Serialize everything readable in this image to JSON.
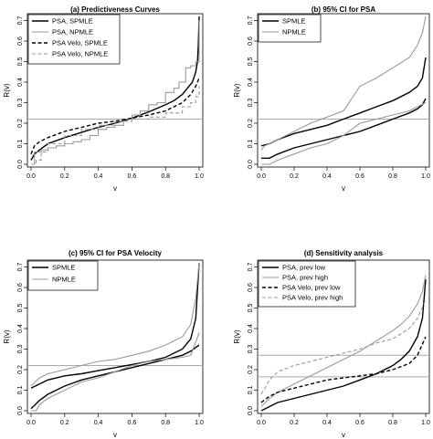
{
  "chart_data": [
    {
      "type": "line",
      "title": "(a) Predictiveness Curves",
      "xlabel": "v",
      "ylabel": "R(v)",
      "xlim": [
        0,
        1
      ],
      "ylim": [
        0,
        0.72
      ],
      "xticks": [
        "0.0",
        "0.2",
        "0.4",
        "0.6",
        "0.8",
        "1.0"
      ],
      "yticks": [
        "0.0",
        "0.1",
        "0.2",
        "0.3",
        "0.4",
        "0.5",
        "0.6",
        "0.7"
      ],
      "legend_position": "top-left",
      "legend": [
        "PSA, SPMLE",
        "PSA, NPMLE",
        "PSA Velo, SPMLE",
        "PSA Velo, NPMLE"
      ],
      "hlines": [
        0.22
      ],
      "series": [
        {
          "name": "PSA, SPMLE",
          "color": "#000000",
          "dash": "solid",
          "step": false,
          "x": [
            0,
            0.02,
            0.05,
            0.1,
            0.2,
            0.3,
            0.4,
            0.5,
            0.6,
            0.7,
            0.8,
            0.85,
            0.9,
            0.93,
            0.96,
            0.98,
            0.99,
            0.995,
            1.0
          ],
          "y": [
            0.02,
            0.05,
            0.07,
            0.1,
            0.13,
            0.155,
            0.18,
            0.2,
            0.225,
            0.255,
            0.29,
            0.31,
            0.34,
            0.37,
            0.4,
            0.45,
            0.5,
            0.58,
            0.72
          ]
        },
        {
          "name": "PSA, NPMLE",
          "color": "#999999",
          "dash": "solid",
          "step": true,
          "x": [
            0,
            0.02,
            0.06,
            0.1,
            0.15,
            0.2,
            0.25,
            0.3,
            0.35,
            0.4,
            0.45,
            0.5,
            0.55,
            0.6,
            0.65,
            0.7,
            0.75,
            0.8,
            0.85,
            0.88,
            0.92,
            0.95,
            0.98,
            1.0
          ],
          "y": [
            0.0,
            0.06,
            0.07,
            0.08,
            0.09,
            0.1,
            0.11,
            0.12,
            0.14,
            0.17,
            0.18,
            0.19,
            0.22,
            0.24,
            0.26,
            0.29,
            0.3,
            0.35,
            0.37,
            0.4,
            0.47,
            0.48,
            0.5,
            0.7
          ]
        },
        {
          "name": "PSA Velo, SPMLE",
          "color": "#000000",
          "dash": "dashed",
          "step": false,
          "x": [
            0,
            0.02,
            0.05,
            0.1,
            0.2,
            0.3,
            0.4,
            0.5,
            0.6,
            0.7,
            0.8,
            0.85,
            0.9,
            0.95,
            0.98,
            1.0
          ],
          "y": [
            0.05,
            0.09,
            0.11,
            0.13,
            0.16,
            0.18,
            0.2,
            0.21,
            0.225,
            0.24,
            0.26,
            0.28,
            0.3,
            0.34,
            0.38,
            0.42
          ]
        },
        {
          "name": "PSA Velo, NPMLE",
          "color": "#999999",
          "dash": "dashed",
          "step": true,
          "x": [
            0,
            0.03,
            0.06,
            0.1,
            0.2,
            0.3,
            0.4,
            0.5,
            0.6,
            0.7,
            0.8,
            0.9,
            0.95,
            0.98,
            1.0
          ],
          "y": [
            0.0,
            0.02,
            0.06,
            0.1,
            0.14,
            0.17,
            0.19,
            0.21,
            0.22,
            0.23,
            0.25,
            0.28,
            0.3,
            0.33,
            0.38
          ]
        }
      ]
    },
    {
      "type": "line",
      "title": "(b) 95% CI for PSA",
      "xlabel": "v",
      "ylabel": "R(v)",
      "xlim": [
        0,
        1
      ],
      "ylim": [
        0,
        0.72
      ],
      "xticks": [
        "0.0",
        "0.2",
        "0.4",
        "0.6",
        "0.8",
        "1.0"
      ],
      "yticks": [
        "0.0",
        "0.1",
        "0.2",
        "0.3",
        "0.4",
        "0.5",
        "0.6",
        "0.7"
      ],
      "legend_position": "top-left",
      "legend": [
        "SPMLE",
        "NPMLE"
      ],
      "hlines": [
        0.22
      ],
      "series": [
        {
          "name": "SPMLE",
          "color": "#000000",
          "dash": "solid",
          "step": false,
          "x": [
            0,
            0.05,
            0.1,
            0.2,
            0.3,
            0.4,
            0.5,
            0.6,
            0.7,
            0.8,
            0.9,
            0.95,
            0.98,
            1.0
          ],
          "y": [
            0.09,
            0.1,
            0.12,
            0.15,
            0.17,
            0.19,
            0.22,
            0.25,
            0.28,
            0.31,
            0.35,
            0.38,
            0.42,
            0.52
          ]
        },
        {
          "series_of": "SPMLE",
          "color": "#000000",
          "dash": "solid",
          "step": false,
          "x": [
            0,
            0.05,
            0.1,
            0.2,
            0.3,
            0.4,
            0.5,
            0.6,
            0.7,
            0.8,
            0.9,
            0.95,
            0.98,
            1.0
          ],
          "y": [
            0.03,
            0.03,
            0.05,
            0.08,
            0.1,
            0.12,
            0.14,
            0.16,
            0.19,
            0.22,
            0.25,
            0.27,
            0.29,
            0.32
          ]
        },
        {
          "name": "NPMLE",
          "color": "#999999",
          "dash": "solid",
          "step": false,
          "x": [
            0,
            0.02,
            0.05,
            0.1,
            0.2,
            0.3,
            0.4,
            0.5,
            0.55,
            0.6,
            0.7,
            0.8,
            0.9,
            0.95,
            0.98,
            1.0
          ],
          "y": [
            0.07,
            0.09,
            0.1,
            0.12,
            0.16,
            0.2,
            0.23,
            0.26,
            0.32,
            0.38,
            0.42,
            0.47,
            0.52,
            0.58,
            0.64,
            0.72
          ]
        },
        {
          "series_of": "NPMLE",
          "color": "#999999",
          "dash": "solid",
          "step": false,
          "x": [
            0,
            0.05,
            0.1,
            0.2,
            0.3,
            0.4,
            0.5,
            0.55,
            0.6,
            0.65,
            0.7,
            0.8,
            0.9,
            0.95,
            1.0
          ],
          "y": [
            0.0,
            0.0,
            0.02,
            0.05,
            0.08,
            0.1,
            0.14,
            0.17,
            0.2,
            0.21,
            0.22,
            0.24,
            0.26,
            0.28,
            0.3
          ]
        }
      ]
    },
    {
      "type": "line",
      "title": "(c) 95% CI for PSA Velocity",
      "xlabel": "v",
      "ylabel": "R(v)",
      "xlim": [
        0,
        1
      ],
      "ylim": [
        0,
        0.72
      ],
      "xticks": [
        "0.0",
        "0.2",
        "0.4",
        "0.6",
        "0.8",
        "1.0"
      ],
      "yticks": [
        "0.0",
        "0.1",
        "0.2",
        "0.3",
        "0.4",
        "0.5",
        "0.6",
        "0.7"
      ],
      "legend_position": "top-left",
      "legend": [
        "SPMLE",
        "NPMLE"
      ],
      "hlines": [
        0.22
      ],
      "series": [
        {
          "name": "SPMLE",
          "color": "#000000",
          "dash": "solid",
          "step": false,
          "x": [
            0,
            0.05,
            0.1,
            0.2,
            0.3,
            0.4,
            0.5,
            0.6,
            0.7,
            0.8,
            0.9,
            0.95,
            0.98,
            1.0
          ],
          "y": [
            0.11,
            0.13,
            0.15,
            0.17,
            0.18,
            0.195,
            0.21,
            0.225,
            0.24,
            0.26,
            0.3,
            0.35,
            0.45,
            0.72
          ]
        },
        {
          "series_of": "SPMLE",
          "color": "#000000",
          "dash": "solid",
          "step": false,
          "x": [
            0,
            0.05,
            0.1,
            0.2,
            0.3,
            0.4,
            0.5,
            0.6,
            0.7,
            0.8,
            0.9,
            0.95,
            1.0
          ],
          "y": [
            0.01,
            0.05,
            0.08,
            0.12,
            0.15,
            0.17,
            0.19,
            0.21,
            0.23,
            0.25,
            0.27,
            0.29,
            0.32
          ]
        },
        {
          "name": "NPMLE",
          "color": "#999999",
          "dash": "solid",
          "step": false,
          "x": [
            0,
            0.05,
            0.1,
            0.2,
            0.3,
            0.4,
            0.5,
            0.6,
            0.7,
            0.8,
            0.9,
            0.95,
            0.98,
            1.0
          ],
          "y": [
            0.12,
            0.16,
            0.18,
            0.2,
            0.22,
            0.24,
            0.25,
            0.27,
            0.29,
            0.32,
            0.36,
            0.42,
            0.55,
            0.72
          ]
        },
        {
          "series_of": "NPMLE",
          "color": "#999999",
          "dash": "solid",
          "step": false,
          "x": [
            0,
            0.03,
            0.05,
            0.1,
            0.2,
            0.3,
            0.4,
            0.5,
            0.6,
            0.7,
            0.8,
            0.9,
            0.95,
            1.0
          ],
          "y": [
            0.0,
            0.0,
            0.03,
            0.06,
            0.1,
            0.14,
            0.16,
            0.19,
            0.22,
            0.24,
            0.25,
            0.26,
            0.27,
            0.38
          ]
        }
      ]
    },
    {
      "type": "line",
      "title": "(d) Sensitivity analysis",
      "xlabel": "v",
      "ylabel": "R(v)",
      "xlim": [
        0,
        1
      ],
      "ylim": [
        0,
        0.72
      ],
      "xticks": [
        "0.0",
        "0.2",
        "0.4",
        "0.6",
        "0.8",
        "1.0"
      ],
      "yticks": [
        "0.0",
        "0.1",
        "0.2",
        "0.3",
        "0.4",
        "0.5",
        "0.6",
        "0.7"
      ],
      "legend_position": "top-left",
      "legend": [
        "PSA, prev low",
        "PSA, prev high",
        "PSA Velo, prev low",
        "PSA Velo, prev high"
      ],
      "hlines": [
        0.165,
        0.27
      ],
      "series": [
        {
          "name": "PSA, prev low",
          "color": "#000000",
          "dash": "solid",
          "step": false,
          "x": [
            0,
            0.05,
            0.1,
            0.2,
            0.3,
            0.4,
            0.5,
            0.6,
            0.7,
            0.8,
            0.85,
            0.9,
            0.95,
            0.98,
            1.0
          ],
          "y": [
            0.0,
            0.02,
            0.04,
            0.06,
            0.08,
            0.1,
            0.12,
            0.15,
            0.18,
            0.22,
            0.25,
            0.29,
            0.36,
            0.45,
            0.64
          ]
        },
        {
          "name": "PSA, prev high",
          "color": "#999999",
          "dash": "solid",
          "step": false,
          "x": [
            0,
            0.05,
            0.1,
            0.2,
            0.3,
            0.4,
            0.5,
            0.6,
            0.7,
            0.8,
            0.85,
            0.9,
            0.95,
            0.98,
            1.0
          ],
          "y": [
            0.02,
            0.06,
            0.09,
            0.13,
            0.17,
            0.21,
            0.25,
            0.29,
            0.34,
            0.39,
            0.42,
            0.46,
            0.52,
            0.58,
            0.66
          ]
        },
        {
          "name": "PSA Velo, prev low",
          "color": "#000000",
          "dash": "dashed",
          "step": false,
          "x": [
            0,
            0.05,
            0.1,
            0.2,
            0.3,
            0.4,
            0.5,
            0.6,
            0.7,
            0.8,
            0.9,
            0.95,
            1.0
          ],
          "y": [
            0.04,
            0.07,
            0.09,
            0.11,
            0.13,
            0.15,
            0.16,
            0.17,
            0.18,
            0.2,
            0.23,
            0.27,
            0.36
          ]
        },
        {
          "name": "PSA Velo, prev high",
          "color": "#999999",
          "dash": "dashed",
          "step": false,
          "x": [
            0,
            0.05,
            0.1,
            0.2,
            0.3,
            0.4,
            0.5,
            0.6,
            0.7,
            0.8,
            0.9,
            0.95,
            1.0
          ],
          "y": [
            0.08,
            0.15,
            0.19,
            0.22,
            0.24,
            0.26,
            0.28,
            0.3,
            0.33,
            0.35,
            0.4,
            0.45,
            0.54
          ]
        }
      ]
    }
  ]
}
